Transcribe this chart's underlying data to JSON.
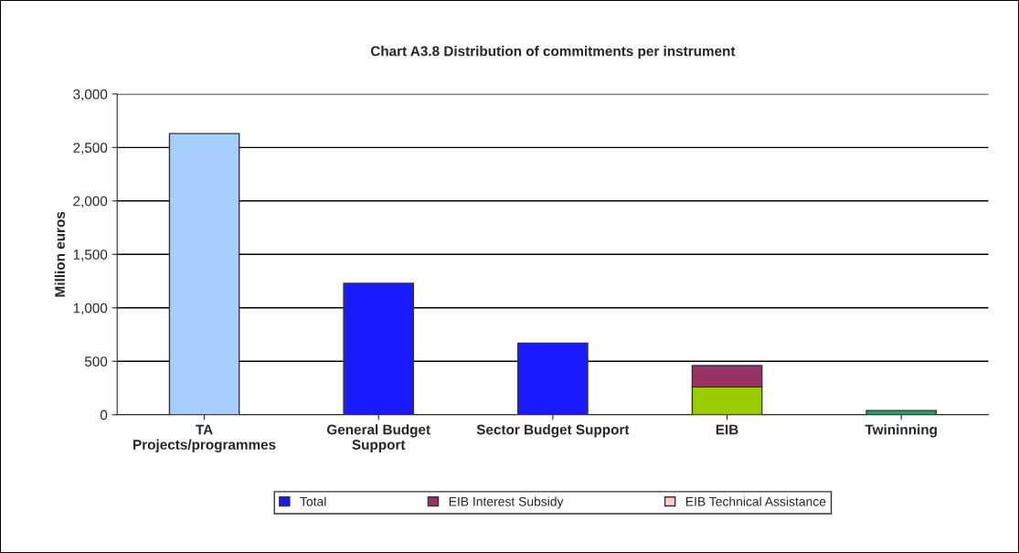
{
  "chart_data": {
    "type": "bar",
    "title": "Chart A3.8 Distribution of commitments per instrument",
    "ylabel": "Million euros",
    "categories": [
      "TA\nProjects/programmes",
      "General Budget\nSupport",
      "Sector Budget Support",
      "EIB",
      "Twininning"
    ],
    "stacked": true,
    "series": [
      {
        "name": "Total",
        "color": "#1a1aff",
        "colors": [
          "#a6cfff",
          "#1a1aff",
          "#1a1aff",
          "#99cc00",
          "#339966"
        ],
        "values": [
          2630,
          1230,
          670,
          260,
          40
        ]
      },
      {
        "name": "EIB Interest Subsidy",
        "color": "#993366",
        "values": [
          null,
          null,
          null,
          200,
          null
        ]
      },
      {
        "name": "EIB Technical Assistance",
        "color": "#ffcccc",
        "values": [
          null,
          null,
          null,
          null,
          null
        ]
      }
    ],
    "ylim": [
      0,
      3000
    ],
    "yticks": [
      {
        "value": 0,
        "label": "0"
      },
      {
        "value": 500,
        "label": "500"
      },
      {
        "value": 1000,
        "label": "1,000"
      },
      {
        "value": 1500,
        "label": "1,500"
      },
      {
        "value": 2000,
        "label": "2,000"
      },
      {
        "value": 2500,
        "label": "2,500"
      },
      {
        "value": 3000,
        "label": "3,000"
      }
    ],
    "grid": "y",
    "legend": "bottom"
  }
}
